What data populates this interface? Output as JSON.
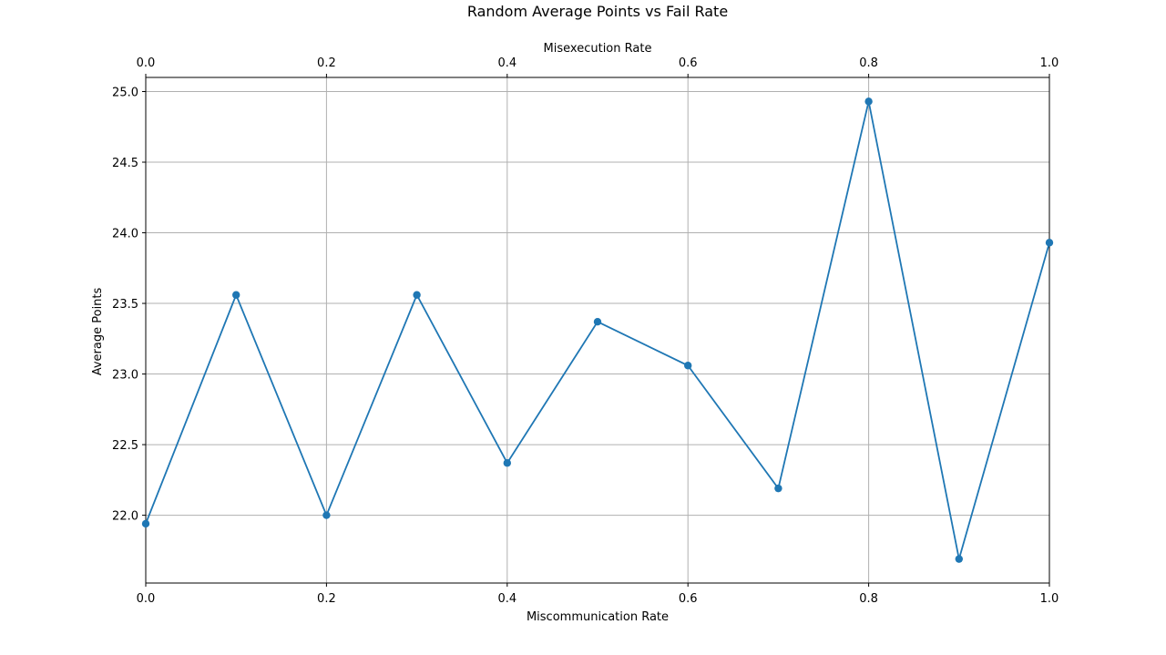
{
  "chart_data": {
    "type": "line",
    "title": "Random Average Points vs Fail Rate",
    "xlabel": "Miscommunication Rate",
    "x2label": "Misexecution Rate",
    "ylabel": "Average Points",
    "xlim": [
      0.0,
      1.0
    ],
    "ylim": [
      21.52,
      25.1
    ],
    "grid": true,
    "x_ticks": [
      "0.0",
      "0.2",
      "0.4",
      "0.6",
      "0.8",
      "1.0"
    ],
    "x2_ticks": [
      "0.0",
      "0.2",
      "0.4",
      "0.6",
      "0.8",
      "1.0"
    ],
    "y_ticks": [
      "22.0",
      "22.5",
      "23.0",
      "23.5",
      "24.0",
      "24.5",
      "25.0"
    ],
    "series": [
      {
        "color": "#1f77b4",
        "x": [
          0.0,
          0.1,
          0.2,
          0.3,
          0.4,
          0.5,
          0.6,
          0.7,
          0.8,
          0.9,
          1.0
        ],
        "y": [
          21.94,
          23.56,
          22.0,
          23.56,
          22.37,
          23.37,
          23.06,
          22.19,
          24.93,
          21.69,
          23.93
        ]
      }
    ]
  }
}
